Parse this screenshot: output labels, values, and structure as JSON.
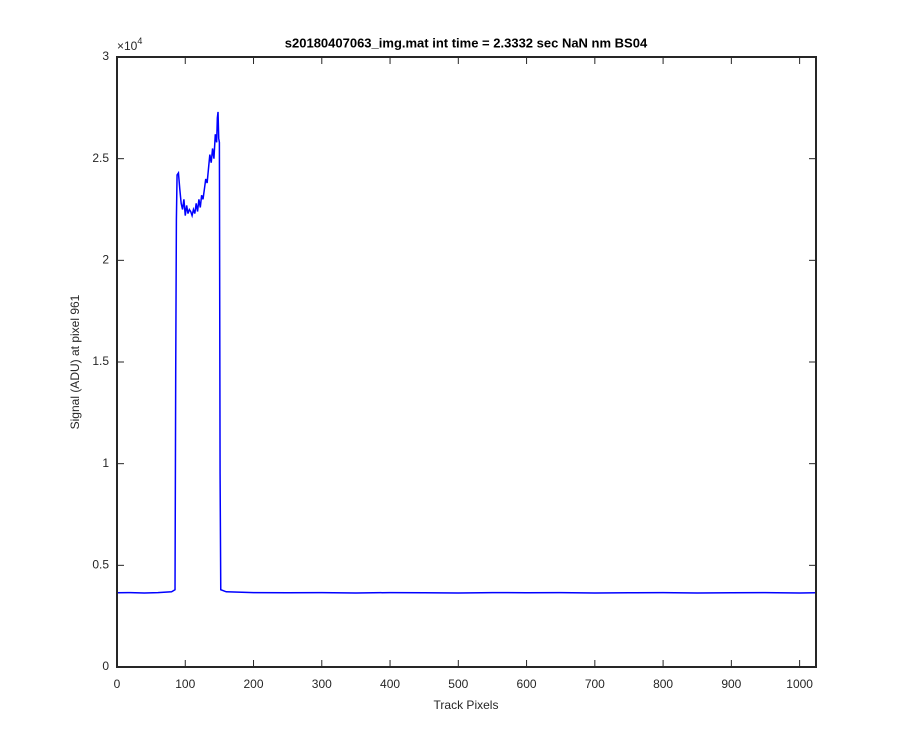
{
  "chart_data": {
    "type": "line",
    "title": "s20180407063_img.mat int time = 2.3332 sec  NaN nm BS04",
    "x_label": "Track Pixels",
    "y_label": "Signal (ADU) at pixel 961",
    "y_multiplier": {
      "base": "×10",
      "power": "4"
    },
    "x": [
      0,
      20,
      40,
      60,
      80,
      85,
      86,
      87,
      88,
      90,
      92,
      94,
      96,
      98,
      100,
      102,
      104,
      106,
      108,
      110,
      112,
      114,
      116,
      118,
      120,
      122,
      124,
      126,
      128,
      130,
      132,
      134,
      136,
      138,
      140,
      142,
      144,
      146,
      147,
      148,
      149,
      150,
      151,
      152,
      160,
      200,
      250,
      300,
      350,
      400,
      450,
      500,
      550,
      600,
      650,
      700,
      750,
      800,
      850,
      900,
      950,
      1000,
      1024
    ],
    "series": [
      {
        "name": "Signal",
        "color": "#0000ff",
        "values": [
          0.365,
          0.366,
          0.364,
          0.366,
          0.37,
          0.38,
          1.45,
          2.2,
          2.42,
          2.43,
          2.35,
          2.28,
          2.25,
          2.3,
          2.22,
          2.27,
          2.23,
          2.25,
          2.24,
          2.22,
          2.25,
          2.23,
          2.28,
          2.24,
          2.3,
          2.26,
          2.32,
          2.3,
          2.35,
          2.4,
          2.38,
          2.45,
          2.52,
          2.48,
          2.55,
          2.5,
          2.62,
          2.58,
          2.7,
          2.73,
          2.6,
          2.58,
          0.95,
          0.38,
          0.37,
          0.366,
          0.365,
          0.366,
          0.364,
          0.366,
          0.365,
          0.364,
          0.366,
          0.365,
          0.366,
          0.364,
          0.365,
          0.366,
          0.364,
          0.365,
          0.366,
          0.364,
          0.365
        ]
      }
    ],
    "xlim": [
      0,
      1024
    ],
    "xticks": [
      0,
      100,
      200,
      300,
      400,
      500,
      600,
      700,
      800,
      900,
      1000
    ],
    "ylim": [
      0,
      3
    ],
    "yticks": [
      0,
      0.5,
      1,
      1.5,
      2,
      2.5,
      3
    ],
    "grid": false
  }
}
